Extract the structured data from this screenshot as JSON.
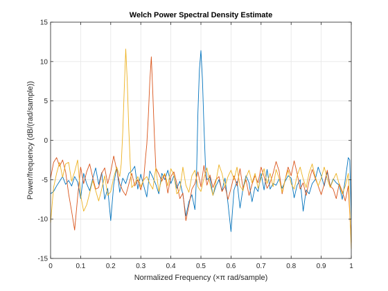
{
  "chart_data": {
    "type": "line",
    "title": "Welch Power Spectral Density Estimate",
    "xlabel": "Normalized Frequency  (×π rad/sample)",
    "ylabel": "Power/frequency (dB/(rad/sample))",
    "xlim": [
      0,
      1
    ],
    "ylim": [
      -15,
      15
    ],
    "xticks": [
      "0",
      "0.1",
      "0.2",
      "0.3",
      "0.4",
      "0.5",
      "0.6",
      "0.7",
      "0.8",
      "0.9",
      "1"
    ],
    "yticks": [
      "-15",
      "-10",
      "-5",
      "0",
      "5",
      "10",
      "15"
    ],
    "grid": true,
    "legend": "none",
    "series": [
      {
        "color": "#0072BD",
        "points": [
          [
            0.0,
            -6.8
          ],
          [
            0.01,
            -6.5
          ],
          [
            0.02,
            -5.8
          ],
          [
            0.03,
            -5.2
          ],
          [
            0.04,
            -4.6
          ],
          [
            0.05,
            -5.6
          ],
          [
            0.06,
            -5.1
          ],
          [
            0.07,
            -5.8
          ],
          [
            0.08,
            -4.6
          ],
          [
            0.09,
            -5.3
          ],
          [
            0.1,
            -7.4
          ],
          [
            0.11,
            -4.2
          ],
          [
            0.12,
            -5.5
          ],
          [
            0.13,
            -6.4
          ],
          [
            0.14,
            -4.9
          ],
          [
            0.15,
            -3.5
          ],
          [
            0.16,
            -5.6
          ],
          [
            0.17,
            -4.1
          ],
          [
            0.18,
            -7.5
          ],
          [
            0.19,
            -6.1
          ],
          [
            0.2,
            -10.2
          ],
          [
            0.21,
            -5.6
          ],
          [
            0.22,
            -3.4
          ],
          [
            0.23,
            -6.6
          ],
          [
            0.24,
            -4.8
          ],
          [
            0.25,
            -5.5
          ],
          [
            0.26,
            -4.2
          ],
          [
            0.27,
            -3.9
          ],
          [
            0.28,
            -3.3
          ],
          [
            0.29,
            -6.2
          ],
          [
            0.3,
            -4.3
          ],
          [
            0.31,
            -5.8
          ],
          [
            0.32,
            -7.2
          ],
          [
            0.33,
            -3.9
          ],
          [
            0.34,
            -4.7
          ],
          [
            0.35,
            -5.6
          ],
          [
            0.36,
            -6.8
          ],
          [
            0.37,
            -4.2
          ],
          [
            0.38,
            -5.0
          ],
          [
            0.39,
            -3.8
          ],
          [
            0.4,
            -5.5
          ],
          [
            0.41,
            -4.5
          ],
          [
            0.42,
            -6.1
          ],
          [
            0.43,
            -5.2
          ],
          [
            0.44,
            -6.9
          ],
          [
            0.45,
            -9.6
          ],
          [
            0.46,
            -7.8
          ],
          [
            0.47,
            -6.9
          ],
          [
            0.48,
            -8.8
          ],
          [
            0.485,
            -5.0
          ],
          [
            0.49,
            3.5
          ],
          [
            0.495,
            9.0
          ],
          [
            0.5,
            11.4
          ],
          [
            0.505,
            7.8
          ],
          [
            0.51,
            1.8
          ],
          [
            0.515,
            -3.2
          ],
          [
            0.52,
            -5.0
          ],
          [
            0.53,
            -4.7
          ],
          [
            0.54,
            -7.0
          ],
          [
            0.55,
            -5.8
          ],
          [
            0.56,
            -5.0
          ],
          [
            0.57,
            -6.4
          ],
          [
            0.58,
            -4.8
          ],
          [
            0.59,
            -8.0
          ],
          [
            0.6,
            -11.6
          ],
          [
            0.61,
            -6.3
          ],
          [
            0.62,
            -5.2
          ],
          [
            0.63,
            -8.6
          ],
          [
            0.64,
            -6.1
          ],
          [
            0.65,
            -4.5
          ],
          [
            0.66,
            -5.4
          ],
          [
            0.67,
            -7.8
          ],
          [
            0.68,
            -5.9
          ],
          [
            0.69,
            -6.5
          ],
          [
            0.7,
            -4.2
          ],
          [
            0.71,
            -6.3
          ],
          [
            0.72,
            -3.7
          ],
          [
            0.73,
            -6.2
          ],
          [
            0.74,
            -5.5
          ],
          [
            0.75,
            -5.7
          ],
          [
            0.76,
            -4.9
          ],
          [
            0.77,
            -6.1
          ],
          [
            0.78,
            -5.2
          ],
          [
            0.79,
            -4.5
          ],
          [
            0.8,
            -4.8
          ],
          [
            0.81,
            -7.3
          ],
          [
            0.82,
            -5.7
          ],
          [
            0.83,
            -5.0
          ],
          [
            0.84,
            -9.0
          ],
          [
            0.85,
            -6.3
          ],
          [
            0.86,
            -6.8
          ],
          [
            0.87,
            -5.5
          ],
          [
            0.88,
            -5.0
          ],
          [
            0.89,
            -3.4
          ],
          [
            0.9,
            -4.5
          ],
          [
            0.91,
            -5.8
          ],
          [
            0.92,
            -4.0
          ],
          [
            0.93,
            -5.9
          ],
          [
            0.94,
            -4.9
          ],
          [
            0.95,
            -5.4
          ],
          [
            0.96,
            -5.7
          ],
          [
            0.97,
            -7.5
          ],
          [
            0.98,
            -5.0
          ],
          [
            0.99,
            -2.2
          ],
          [
            0.995,
            -2.5
          ],
          [
            1.0,
            -10.0
          ]
        ]
      },
      {
        "color": "#D95319",
        "points": [
          [
            0.0,
            -4.8
          ],
          [
            0.01,
            -2.8
          ],
          [
            0.02,
            -2.2
          ],
          [
            0.03,
            -3.3
          ],
          [
            0.04,
            -2.5
          ],
          [
            0.05,
            -4.0
          ],
          [
            0.06,
            -6.8
          ],
          [
            0.07,
            -9.0
          ],
          [
            0.08,
            -11.4
          ],
          [
            0.09,
            -7.2
          ],
          [
            0.1,
            -3.4
          ],
          [
            0.11,
            -5.5
          ],
          [
            0.12,
            -4.0
          ],
          [
            0.13,
            -3.0
          ],
          [
            0.14,
            -4.7
          ],
          [
            0.15,
            -6.2
          ],
          [
            0.16,
            -6.0
          ],
          [
            0.17,
            -4.2
          ],
          [
            0.18,
            -3.5
          ],
          [
            0.19,
            -5.5
          ],
          [
            0.2,
            -4.0
          ],
          [
            0.21,
            -2.0
          ],
          [
            0.22,
            -3.8
          ],
          [
            0.23,
            -5.5
          ],
          [
            0.24,
            -6.4
          ],
          [
            0.25,
            -7.0
          ],
          [
            0.26,
            -5.6
          ],
          [
            0.27,
            -4.2
          ],
          [
            0.28,
            -5.8
          ],
          [
            0.29,
            -5.0
          ],
          [
            0.3,
            -6.3
          ],
          [
            0.31,
            -4.8
          ],
          [
            0.315,
            -2.5
          ],
          [
            0.32,
            -0.5
          ],
          [
            0.325,
            3.0
          ],
          [
            0.33,
            7.5
          ],
          [
            0.335,
            10.6
          ],
          [
            0.34,
            6.0
          ],
          [
            0.345,
            0.8
          ],
          [
            0.35,
            -3.5
          ],
          [
            0.36,
            -4.3
          ],
          [
            0.37,
            -5.2
          ],
          [
            0.38,
            -4.3
          ],
          [
            0.39,
            -6.7
          ],
          [
            0.4,
            -4.6
          ],
          [
            0.41,
            -4.0
          ],
          [
            0.42,
            -5.5
          ],
          [
            0.43,
            -7.4
          ],
          [
            0.44,
            -6.7
          ],
          [
            0.45,
            -10.2
          ],
          [
            0.46,
            -8.3
          ],
          [
            0.47,
            -6.2
          ],
          [
            0.48,
            -5.5
          ],
          [
            0.49,
            -4.0
          ],
          [
            0.5,
            -5.9
          ],
          [
            0.51,
            -3.2
          ],
          [
            0.52,
            -5.7
          ],
          [
            0.53,
            -4.4
          ],
          [
            0.54,
            -6.0
          ],
          [
            0.55,
            -5.0
          ],
          [
            0.56,
            -4.6
          ],
          [
            0.57,
            -6.5
          ],
          [
            0.58,
            -5.8
          ],
          [
            0.59,
            -7.5
          ],
          [
            0.6,
            -6.1
          ],
          [
            0.61,
            -4.5
          ],
          [
            0.62,
            -5.8
          ],
          [
            0.63,
            -3.6
          ],
          [
            0.64,
            -6.1
          ],
          [
            0.65,
            -5.0
          ],
          [
            0.66,
            -7.0
          ],
          [
            0.67,
            -5.6
          ],
          [
            0.68,
            -4.5
          ],
          [
            0.69,
            -5.4
          ],
          [
            0.7,
            -3.4
          ],
          [
            0.71,
            -4.6
          ],
          [
            0.72,
            -6.1
          ],
          [
            0.73,
            -5.4
          ],
          [
            0.74,
            -4.2
          ],
          [
            0.75,
            -2.7
          ],
          [
            0.76,
            -3.9
          ],
          [
            0.77,
            -6.8
          ],
          [
            0.78,
            -5.0
          ],
          [
            0.79,
            -3.4
          ],
          [
            0.8,
            -4.5
          ],
          [
            0.81,
            -2.6
          ],
          [
            0.82,
            -4.2
          ],
          [
            0.83,
            -6.2
          ],
          [
            0.84,
            -5.4
          ],
          [
            0.85,
            -7.0
          ],
          [
            0.86,
            -5.1
          ],
          [
            0.87,
            -3.7
          ],
          [
            0.88,
            -4.8
          ],
          [
            0.89,
            -5.8
          ],
          [
            0.9,
            -6.9
          ],
          [
            0.91,
            -5.6
          ],
          [
            0.92,
            -3.8
          ],
          [
            0.93,
            -5.8
          ],
          [
            0.94,
            -6.2
          ],
          [
            0.95,
            -7.4
          ],
          [
            0.96,
            -5.5
          ],
          [
            0.97,
            -6.5
          ],
          [
            0.98,
            -7.7
          ],
          [
            0.99,
            -5.8
          ],
          [
            1.0,
            -13.0
          ]
        ]
      },
      {
        "color": "#EDB120",
        "points": [
          [
            0.0,
            -10.5
          ],
          [
            0.01,
            -6.0
          ],
          [
            0.02,
            -4.2
          ],
          [
            0.03,
            -2.8
          ],
          [
            0.04,
            -4.7
          ],
          [
            0.05,
            -3.0
          ],
          [
            0.06,
            -2.8
          ],
          [
            0.07,
            -5.2
          ],
          [
            0.08,
            -4.0
          ],
          [
            0.09,
            -2.5
          ],
          [
            0.1,
            -7.0
          ],
          [
            0.11,
            -9.0
          ],
          [
            0.12,
            -8.2
          ],
          [
            0.13,
            -6.7
          ],
          [
            0.14,
            -5.1
          ],
          [
            0.15,
            -6.4
          ],
          [
            0.16,
            -7.7
          ],
          [
            0.17,
            -6.2
          ],
          [
            0.18,
            -4.5
          ],
          [
            0.19,
            -7.0
          ],
          [
            0.2,
            -6.5
          ],
          [
            0.21,
            -4.7
          ],
          [
            0.22,
            -3.4
          ],
          [
            0.23,
            -4.6
          ],
          [
            0.235,
            -3.0
          ],
          [
            0.24,
            1.0
          ],
          [
            0.245,
            6.5
          ],
          [
            0.25,
            11.6
          ],
          [
            0.255,
            7.5
          ],
          [
            0.26,
            1.5
          ],
          [
            0.265,
            -3.0
          ],
          [
            0.27,
            -6.0
          ],
          [
            0.28,
            -5.5
          ],
          [
            0.29,
            -4.6
          ],
          [
            0.3,
            -5.9
          ],
          [
            0.31,
            -5.0
          ],
          [
            0.32,
            -4.6
          ],
          [
            0.33,
            -5.5
          ],
          [
            0.34,
            -6.2
          ],
          [
            0.35,
            -3.5
          ],
          [
            0.36,
            -6.5
          ],
          [
            0.37,
            -4.8
          ],
          [
            0.38,
            -4.2
          ],
          [
            0.39,
            -5.8
          ],
          [
            0.4,
            -3.6
          ],
          [
            0.41,
            -4.4
          ],
          [
            0.42,
            -6.8
          ],
          [
            0.43,
            -6.3
          ],
          [
            0.44,
            -3.4
          ],
          [
            0.45,
            -5.7
          ],
          [
            0.46,
            -6.6
          ],
          [
            0.47,
            -4.5
          ],
          [
            0.48,
            -3.8
          ],
          [
            0.49,
            -5.9
          ],
          [
            0.5,
            -6.5
          ],
          [
            0.51,
            -4.8
          ],
          [
            0.52,
            -3.5
          ],
          [
            0.53,
            -5.5
          ],
          [
            0.54,
            -7.0
          ],
          [
            0.55,
            -5.2
          ],
          [
            0.56,
            -3.1
          ],
          [
            0.57,
            -4.2
          ],
          [
            0.58,
            -5.9
          ],
          [
            0.59,
            -4.6
          ],
          [
            0.6,
            -3.8
          ],
          [
            0.61,
            -5.0
          ],
          [
            0.62,
            -3.4
          ],
          [
            0.63,
            -5.8
          ],
          [
            0.64,
            -6.4
          ],
          [
            0.65,
            -4.7
          ],
          [
            0.66,
            -3.8
          ],
          [
            0.67,
            -5.4
          ],
          [
            0.68,
            -4.2
          ],
          [
            0.69,
            -6.1
          ],
          [
            0.7,
            -4.8
          ],
          [
            0.71,
            -3.6
          ],
          [
            0.72,
            -5.5
          ],
          [
            0.73,
            -4.2
          ],
          [
            0.74,
            -5.9
          ],
          [
            0.75,
            -3.7
          ],
          [
            0.76,
            -4.8
          ],
          [
            0.77,
            -6.6
          ],
          [
            0.78,
            -5.0
          ],
          [
            0.79,
            -3.8
          ],
          [
            0.8,
            -5.5
          ],
          [
            0.81,
            -6.2
          ],
          [
            0.82,
            -4.5
          ],
          [
            0.83,
            -3.4
          ],
          [
            0.84,
            -4.9
          ],
          [
            0.85,
            -6.0
          ],
          [
            0.86,
            -4.1
          ],
          [
            0.87,
            -3.0
          ],
          [
            0.88,
            -4.6
          ],
          [
            0.89,
            -5.8
          ],
          [
            0.9,
            -4.8
          ],
          [
            0.91,
            -3.4
          ],
          [
            0.92,
            -4.9
          ],
          [
            0.93,
            -6.0
          ],
          [
            0.94,
            -5.0
          ],
          [
            0.95,
            -4.2
          ],
          [
            0.96,
            -5.6
          ],
          [
            0.97,
            -6.8
          ],
          [
            0.98,
            -5.8
          ],
          [
            0.99,
            -4.2
          ],
          [
            1.0,
            -13.8
          ]
        ]
      }
    ]
  }
}
